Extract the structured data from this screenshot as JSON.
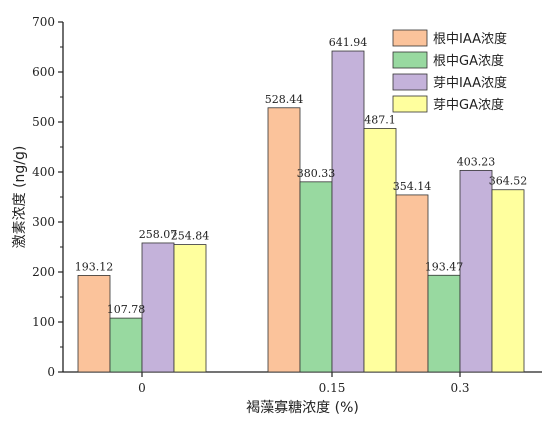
{
  "chart_data": {
    "type": "bar",
    "title": "",
    "xlabel": "褐藻寡糖浓度 (%)",
    "ylabel": "激素浓度 (ng/g)",
    "categories": [
      "0",
      "0.15",
      "0.3"
    ],
    "ylim": [
      0,
      700
    ],
    "yticks": [
      0,
      100,
      200,
      300,
      400,
      500,
      600,
      700
    ],
    "grid": false,
    "legend_position": "top-right",
    "series": [
      {
        "name": "根中IAA浓度",
        "color": "#FBC39B",
        "values": [
          193.12,
          528.44,
          354.14
        ],
        "labels": [
          "193.12",
          "528.44",
          "354.14"
        ]
      },
      {
        "name": "根中GA浓度",
        "color": "#98D9A0",
        "values": [
          107.78,
          380.33,
          193.47
        ],
        "labels": [
          "107.78",
          "380.33",
          "193.47"
        ]
      },
      {
        "name": "芽中IAA浓度",
        "color": "#C4B2DA",
        "values": [
          258.07,
          641.94,
          403.23
        ],
        "labels": [
          "258.07",
          "641.94",
          "403.23"
        ]
      },
      {
        "name": "芽中GA浓度",
        "color": "#FFFF9E",
        "values": [
          254.84,
          487.1,
          364.52
        ],
        "labels": [
          "254.84",
          "487.1",
          "364.52"
        ]
      }
    ]
  }
}
